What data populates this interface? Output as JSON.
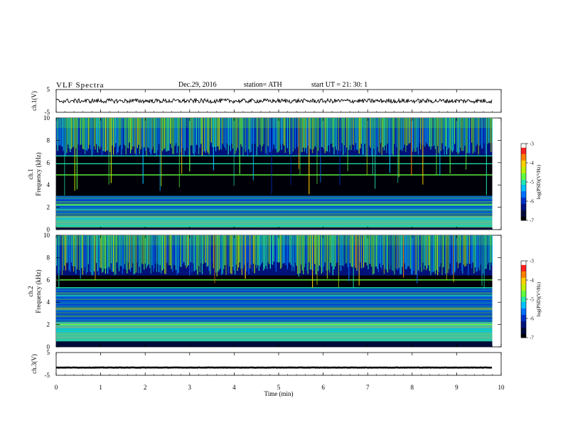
{
  "header": {
    "title": "VLF  Spectra",
    "date": "Dec.29, 2016",
    "station": "station= ATH",
    "start": "start  UT  =    21: 30: 1"
  },
  "colors": {
    "colormap": [
      "#000000",
      "#000b3a",
      "#00127d",
      "#0030c8",
      "#0070ff",
      "#00c0ff",
      "#20e8b0",
      "#60ff40",
      "#c0f000",
      "#ffd000",
      "#ff8000",
      "#ff2020",
      "#ffffff"
    ]
  },
  "chart_data": [
    {
      "type": "line",
      "panel": "ch1-waveform",
      "ylabel": "ch.1(V)",
      "ylim": [
        -5,
        5
      ],
      "yticks": [
        "5",
        "-5"
      ],
      "xlim": [
        0,
        10
      ],
      "x_extent": [
        0,
        9.8
      ],
      "series": [
        {
          "mean": 0,
          "description_level": "noisy trace near 0 V, amplitude about ±1 V",
          "values_mean_v": 0,
          "peak_v": 1.2
        }
      ]
    },
    {
      "type": "heatmap",
      "panel": "ch1-spectrogram",
      "ylabel": "ch.1\nFrequency (kHz)",
      "ylabel_parts": [
        "ch.1",
        "Frequency  (kHz)"
      ],
      "ylim": [
        0,
        10
      ],
      "yticks": [
        "0",
        "2",
        "4",
        "6",
        "8",
        "10"
      ],
      "xlim": [
        0,
        10
      ],
      "x_extent": [
        0,
        9.8
      ],
      "colorbar": {
        "label": "log(PSD)(V²/Hz)",
        "range": [
          -7,
          -3
        ],
        "ticks": [
          "-3",
          "-4",
          "-5",
          "-6",
          "-7"
        ]
      },
      "bands_khz": {
        "strong_low": [
          0.2,
          1.2
        ],
        "moderate": [
          1.2,
          3.0
        ],
        "quiet": [
          3.0,
          6.6
        ],
        "sferics_high": [
          6.6,
          10.0
        ]
      },
      "lines_khz": [
        5.9,
        6.6,
        4.9,
        2.2,
        1.8
      ]
    },
    {
      "type": "heatmap",
      "panel": "ch2-spectrogram",
      "ylabel_parts": [
        "ch.2",
        "Frequency  (kHz)"
      ],
      "ylim": [
        0,
        10
      ],
      "yticks": [
        "0",
        "2",
        "4",
        "6",
        "8",
        "10"
      ],
      "xlim": [
        0,
        10
      ],
      "x_extent": [
        0,
        9.8
      ],
      "colorbar": {
        "label": "log(PSD)(V²/Hz)",
        "range": [
          -7,
          -3
        ],
        "ticks": [
          "-3",
          "-4",
          "-5",
          "-6",
          "-7"
        ]
      },
      "bands_khz": {
        "strong_low": [
          0.5,
          2.2
        ],
        "moderate": [
          2.2,
          5.2
        ],
        "quiet": [
          5.2,
          6.4
        ],
        "sferics_high": [
          6.4,
          10.0
        ]
      },
      "lines_khz": [
        6.0,
        5.3,
        4.6,
        3.4,
        2.0
      ]
    },
    {
      "type": "line",
      "panel": "ch3-waveform",
      "ylabel": "ch.3(V)",
      "ylim": [
        -5,
        5
      ],
      "yticks": [
        "5",
        "-5"
      ],
      "xlim": [
        0,
        10
      ],
      "x_extent": [
        0,
        9.8
      ],
      "series": [
        {
          "values_mean_v": -1.6,
          "peak_v": 0.3
        }
      ]
    }
  ],
  "xaxis": {
    "label": "Time  (min)",
    "ticks": [
      "0",
      "1",
      "2",
      "3",
      "4",
      "5",
      "6",
      "7",
      "8",
      "9",
      "10"
    ]
  }
}
